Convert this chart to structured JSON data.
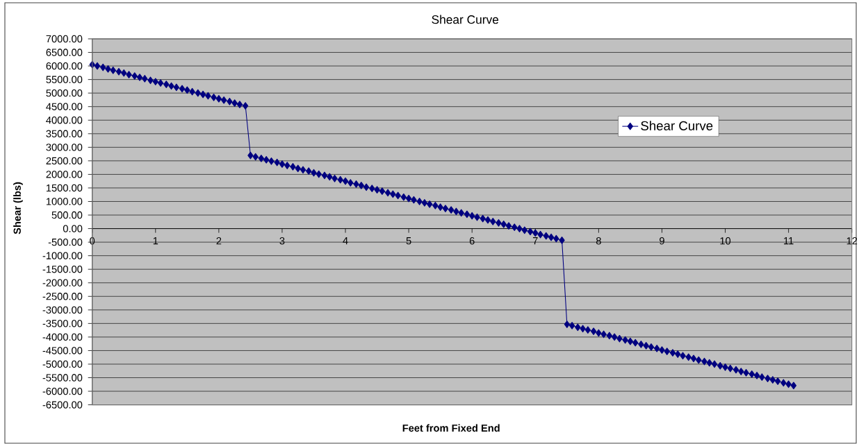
{
  "chart_data": {
    "type": "line",
    "title": "Shear Curve",
    "xlabel": "Feet from Fixed End",
    "ylabel": "Shear (lbs)",
    "x": [
      0,
      0.08,
      0.17,
      0.25,
      0.33,
      0.42,
      0.5,
      0.58,
      0.67,
      0.75,
      0.83,
      0.92,
      1,
      1.08,
      1.17,
      1.25,
      1.33,
      1.42,
      1.5,
      1.58,
      1.67,
      1.75,
      1.83,
      1.92,
      2,
      2.08,
      2.17,
      2.25,
      2.33,
      2.42,
      2.5,
      2.58,
      2.67,
      2.75,
      2.83,
      2.92,
      3,
      3.08,
      3.17,
      3.25,
      3.33,
      3.42,
      3.5,
      3.58,
      3.67,
      3.75,
      3.83,
      3.92,
      4,
      4.08,
      4.17,
      4.25,
      4.33,
      4.42,
      4.5,
      4.58,
      4.67,
      4.75,
      4.83,
      4.92,
      5,
      5.08,
      5.17,
      5.25,
      5.33,
      5.42,
      5.5,
      5.58,
      5.67,
      5.75,
      5.83,
      5.92,
      6,
      6.08,
      6.17,
      6.25,
      6.33,
      6.42,
      6.5,
      6.58,
      6.67,
      6.75,
      6.83,
      6.92,
      7,
      7.08,
      7.17,
      7.25,
      7.33,
      7.42,
      7.5,
      7.58,
      7.67,
      7.75,
      7.83,
      7.92,
      8,
      8.08,
      8.17,
      8.25,
      8.33,
      8.42,
      8.5,
      8.58,
      8.67,
      8.75,
      8.83,
      8.92,
      9,
      9.08,
      9.17,
      9.25,
      9.33,
      9.42,
      9.5,
      9.58,
      9.67,
      9.75,
      9.83,
      9.92,
      10,
      10.08,
      10.17,
      10.25,
      10.33,
      10.42,
      10.5,
      10.58,
      10.67,
      10.75,
      10.83,
      10.92,
      11,
      11.08
    ],
    "series": [
      {
        "name": "Shear Curve",
        "color": "#000080",
        "values": [
          6050,
          6000,
          5950,
          5890,
          5840,
          5790,
          5740,
          5680,
          5630,
          5580,
          5530,
          5470,
          5420,
          5370,
          5320,
          5260,
          5210,
          5160,
          5110,
          5050,
          5000,
          4950,
          4900,
          4840,
          4790,
          4740,
          4690,
          4630,
          4580,
          4530,
          2700,
          2650,
          2590,
          2540,
          2490,
          2440,
          2380,
          2330,
          2280,
          2220,
          2170,
          2120,
          2060,
          2010,
          1960,
          1910,
          1850,
          1800,
          1750,
          1690,
          1640,
          1590,
          1530,
          1480,
          1430,
          1380,
          1320,
          1270,
          1220,
          1160,
          1110,
          1060,
          1000,
          950,
          900,
          850,
          790,
          740,
          690,
          630,
          580,
          530,
          470,
          420,
          370,
          320,
          260,
          210,
          160,
          100,
          50,
          0,
          -60,
          -110,
          -160,
          -220,
          -270,
          -320,
          -370,
          -430,
          -3530,
          -3580,
          -3640,
          -3690,
          -3740,
          -3790,
          -3850,
          -3900,
          -3950,
          -4000,
          -4060,
          -4110,
          -4160,
          -4210,
          -4270,
          -4320,
          -4370,
          -4420,
          -4480,
          -4530,
          -4580,
          -4630,
          -4690,
          -4740,
          -4790,
          -4850,
          -4900,
          -4950,
          -5000,
          -5060,
          -5110,
          -5160,
          -5210,
          -5270,
          -5320,
          -5370,
          -5420,
          -5480,
          -5530,
          -5580,
          -5630,
          -5690,
          -5740,
          -5790
        ]
      }
    ],
    "xlim": [
      0,
      12
    ],
    "xticks": [
      0,
      1,
      2,
      3,
      4,
      5,
      6,
      7,
      8,
      9,
      10,
      11,
      12
    ],
    "ylim": [
      -6500,
      7000
    ],
    "yticks": [
      {
        "value": 7000,
        "label": "7000.00"
      },
      {
        "value": 6500,
        "label": "6500.00"
      },
      {
        "value": 6000,
        "label": "6000.00"
      },
      {
        "value": 5500,
        "label": "5500.00"
      },
      {
        "value": 5000,
        "label": "5000.00"
      },
      {
        "value": 4500,
        "label": "4500.00"
      },
      {
        "value": 4000,
        "label": "4000.00"
      },
      {
        "value": 3500,
        "label": "3500.00"
      },
      {
        "value": 3000,
        "label": "3000.00"
      },
      {
        "value": 2500,
        "label": "2500.00"
      },
      {
        "value": 2000,
        "label": "2000.00"
      },
      {
        "value": 1500,
        "label": "1500.00"
      },
      {
        "value": 1000,
        "label": "1000.00"
      },
      {
        "value": 500,
        "label": "500.00"
      },
      {
        "value": 0,
        "label": "0.00"
      },
      {
        "value": -500,
        "label": "-500.00"
      },
      {
        "value": -1000,
        "label": "-1000.00"
      },
      {
        "value": -1500,
        "label": "-1500.00"
      },
      {
        "value": -2000,
        "label": "-2000.00"
      },
      {
        "value": -2500,
        "label": "-2500.00"
      },
      {
        "value": -3000,
        "label": "-3000.00"
      },
      {
        "value": -3500,
        "label": "-3500.00"
      },
      {
        "value": -4000,
        "label": "-4000.00"
      },
      {
        "value": -4500,
        "label": "-4500.00"
      },
      {
        "value": -5000,
        "label": "-5000.00"
      },
      {
        "value": -5500,
        "label": "-5500.00"
      },
      {
        "value": -6000,
        "label": "-6000.00"
      },
      {
        "value": -6500,
        "label": "-6500.00"
      }
    ],
    "grid": "y",
    "legend": "right",
    "marker": "diamond",
    "line_style": "solid"
  }
}
